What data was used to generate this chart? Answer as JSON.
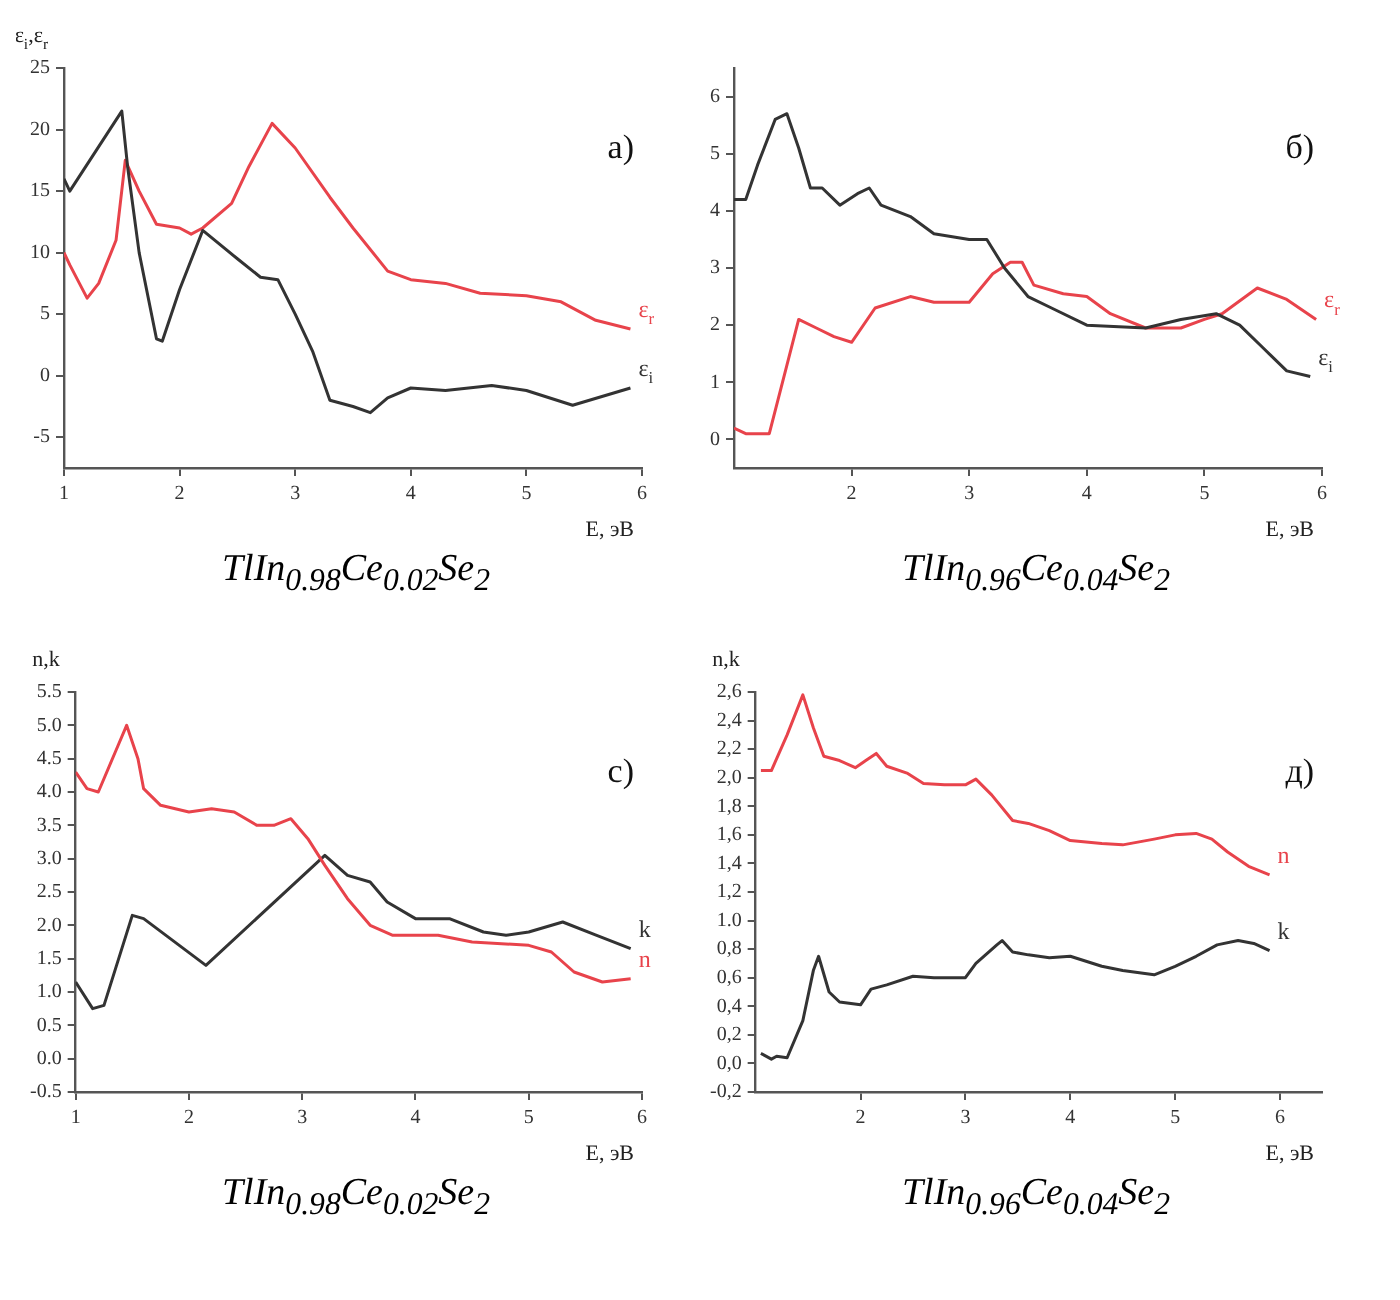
{
  "chart_data": [
    {
      "type": "line",
      "title": "a)",
      "xlabel": "E, эВ",
      "ylabel": "ε$_{i}$,ε$_{r}$",
      "annotations": [
        "TlIn$_{0.98}$Ce$_{0.02}$Se$_{2}$"
      ],
      "xlim": [
        1,
        6
      ],
      "xticks": [
        1,
        2,
        3,
        4,
        5,
        6
      ],
      "ylim": [
        -7.5,
        25
      ],
      "yticks": [
        -5,
        0,
        5,
        10,
        15,
        20,
        25
      ],
      "grid": false,
      "legend": false,
      "marker": "none",
      "series": [
        {
          "name": "ε$_{i}$",
          "color": "#333333",
          "x": [
            1,
            1.05,
            1.5,
            1.55,
            1.65,
            1.8,
            1.85,
            2.0,
            2.2,
            2.5,
            2.7,
            2.85,
            3.0,
            3.15,
            3.3,
            3.5,
            3.65,
            3.8,
            4.0,
            4.3,
            4.7,
            5.0,
            5.4,
            5.9
          ],
          "values": [
            16,
            15,
            21.5,
            17,
            10,
            3,
            2.8,
            7,
            11.8,
            9.5,
            8,
            7.8,
            5,
            2,
            -2,
            -2.5,
            -3,
            -1.8,
            -1,
            -1.2,
            -0.8,
            -1.2,
            -2.4,
            -1
          ]
        },
        {
          "name": "ε$_{r}$",
          "color": "#e8434b",
          "x": [
            1,
            1.05,
            1.2,
            1.3,
            1.45,
            1.53,
            1.65,
            1.8,
            2.0,
            2.1,
            2.2,
            2.45,
            2.6,
            2.8,
            3.0,
            3.3,
            3.5,
            3.8,
            4.0,
            4.3,
            4.6,
            5.0,
            5.3,
            5.6,
            5.9
          ],
          "values": [
            10,
            9,
            6.3,
            7.5,
            11,
            17.5,
            15,
            12.3,
            12,
            11.5,
            12,
            14,
            17,
            20.5,
            18.5,
            14.5,
            12,
            8.5,
            7.8,
            7.5,
            6.7,
            6.5,
            6,
            4.5,
            3.8
          ]
        }
      ]
    },
    {
      "type": "line",
      "title": "б)",
      "xlabel": "E, эВ",
      "annotations": [
        "TlIn$_{0.96}$Ce$_{0.04}$Se$_{2}$"
      ],
      "xlim": [
        1,
        6
      ],
      "xticks": [
        2,
        3,
        4,
        5,
        6
      ],
      "ylim": [
        -0.5,
        6.5
      ],
      "yticks": [
        0,
        1,
        2,
        3,
        4,
        5,
        6
      ],
      "grid": false,
      "legend": false,
      "marker": "none",
      "series": [
        {
          "name": "ε$_{i}$",
          "color": "#333333",
          "x": [
            1,
            1.1,
            1.2,
            1.35,
            1.45,
            1.55,
            1.65,
            1.75,
            1.9,
            2.05,
            2.15,
            2.25,
            2.5,
            2.7,
            3.0,
            3.15,
            3.3,
            3.5,
            3.7,
            4.0,
            4.5,
            4.8,
            5.1,
            5.3,
            5.5,
            5.7,
            5.9
          ],
          "values": [
            4.2,
            4.2,
            4.8,
            5.6,
            5.7,
            5.1,
            4.4,
            4.4,
            4.1,
            4.3,
            4.4,
            4.1,
            3.9,
            3.6,
            3.5,
            3.5,
            3.0,
            2.5,
            2.3,
            2.0,
            1.95,
            2.1,
            2.2,
            2.0,
            1.6,
            1.2,
            1.1
          ]
        },
        {
          "name": "ε$_{r}$",
          "color": "#e8434b",
          "x": [
            1,
            1.1,
            1.3,
            1.45,
            1.55,
            1.7,
            1.85,
            2.0,
            2.2,
            2.5,
            2.7,
            3.0,
            3.2,
            3.35,
            3.45,
            3.55,
            3.8,
            4.0,
            4.2,
            4.5,
            4.8,
            5.0,
            5.15,
            5.45,
            5.7,
            5.95
          ],
          "values": [
            0.2,
            0.1,
            0.1,
            1.3,
            2.1,
            1.95,
            1.8,
            1.7,
            2.3,
            2.5,
            2.4,
            2.4,
            2.9,
            3.1,
            3.1,
            2.7,
            2.55,
            2.5,
            2.2,
            1.95,
            1.95,
            2.1,
            2.2,
            2.65,
            2.45,
            2.1
          ]
        }
      ]
    },
    {
      "type": "line",
      "title": "c)",
      "xlabel": "E, эВ",
      "ylabel": "n,k",
      "annotations": [
        "TlIn$_{0.98}$Ce$_{0.02}$Se$_{2}$"
      ],
      "xlim": [
        1,
        6
      ],
      "xticks": [
        1,
        2,
        3,
        4,
        5,
        6
      ],
      "ylim": [
        -0.5,
        5.5
      ],
      "yticks": [
        -0.5,
        {
          "value": 0,
          "label": "0.0"
        },
        0.5,
        {
          "value": 1,
          "label": "1.0"
        },
        1.5,
        {
          "value": 2,
          "label": "2.0"
        },
        2.5,
        {
          "value": 3,
          "label": "3.0"
        },
        3.5,
        {
          "value": 4,
          "label": "4.0"
        },
        4.5,
        {
          "value": 5,
          "label": "5.0"
        },
        5.5
      ],
      "grid": false,
      "legend": false,
      "marker": "none",
      "series": [
        {
          "name": "n",
          "color": "#e8434b",
          "x": [
            1,
            1.1,
            1.2,
            1.35,
            1.45,
            1.55,
            1.6,
            1.75,
            2.0,
            2.2,
            2.4,
            2.6,
            2.75,
            2.9,
            3.05,
            3.2,
            3.4,
            3.6,
            3.8,
            4.0,
            4.2,
            4.5,
            5.0,
            5.2,
            5.4,
            5.65,
            5.9
          ],
          "values": [
            4.3,
            4.05,
            4.0,
            4.6,
            5.0,
            4.5,
            4.05,
            3.8,
            3.7,
            3.75,
            3.7,
            3.5,
            3.5,
            3.6,
            3.3,
            2.9,
            2.4,
            2.0,
            1.85,
            1.85,
            1.85,
            1.75,
            1.7,
            1.6,
            1.3,
            1.15,
            1.2
          ]
        },
        {
          "name": "k",
          "color": "#333333",
          "x": [
            1,
            1.15,
            1.25,
            1.5,
            1.6,
            2.15,
            3.2,
            3.4,
            3.6,
            3.75,
            4.0,
            4.3,
            4.6,
            4.8,
            5.0,
            5.3,
            5.6,
            5.9
          ],
          "values": [
            1.15,
            0.75,
            0.8,
            2.15,
            2.1,
            1.4,
            3.05,
            2.75,
            2.65,
            2.35,
            2.1,
            2.1,
            1.9,
            1.85,
            1.9,
            2.05,
            1.85,
            1.65
          ]
        }
      ]
    },
    {
      "type": "line",
      "title": "д)",
      "xlabel": "E, эВ",
      "ylabel": "n,k",
      "annotations": [
        "TlIn$_{0.96}$Ce$_{0.04}$Se$_{2}$"
      ],
      "xlim": [
        1,
        6.4
      ],
      "xticks": [
        2,
        3,
        4,
        5,
        6
      ],
      "ylim": [
        -0.2,
        2.6
      ],
      "yticks": [
        {
          "value": -0.2,
          "label": "-0,2"
        },
        {
          "value": 0,
          "label": "0,0"
        },
        {
          "value": 0.2,
          "label": "0,2"
        },
        {
          "value": 0.4,
          "label": "0,4"
        },
        {
          "value": 0.6,
          "label": "0,6"
        },
        {
          "value": 0.8,
          "label": "0,8"
        },
        {
          "value": 1,
          "label": "1.0"
        },
        {
          "value": 1.2,
          "label": "1,2"
        },
        {
          "value": 1.4,
          "label": "1,4"
        },
        {
          "value": 1.6,
          "label": "1,6"
        },
        {
          "value": 1.8,
          "label": "1,8"
        },
        {
          "value": 2,
          "label": "2,0"
        },
        {
          "value": 2.2,
          "label": "2,2"
        },
        {
          "value": 2.4,
          "label": "2,4"
        },
        {
          "value": 2.6,
          "label": "2,6"
        }
      ],
      "grid": false,
      "legend": false,
      "marker": "none",
      "series": [
        {
          "name": "n",
          "color": "#e8434b",
          "x": [
            1.05,
            1.15,
            1.3,
            1.45,
            1.55,
            1.65,
            1.8,
            1.95,
            2.05,
            2.15,
            2.25,
            2.45,
            2.6,
            2.8,
            3.0,
            3.1,
            3.25,
            3.45,
            3.6,
            3.8,
            4.0,
            4.3,
            4.5,
            4.8,
            5.0,
            5.2,
            5.35,
            5.5,
            5.7,
            5.9
          ],
          "values": [
            2.05,
            2.05,
            2.3,
            2.58,
            2.35,
            2.15,
            2.12,
            2.07,
            2.12,
            2.17,
            2.08,
            2.03,
            1.96,
            1.95,
            1.95,
            1.99,
            1.88,
            1.7,
            1.68,
            1.63,
            1.56,
            1.54,
            1.53,
            1.57,
            1.6,
            1.61,
            1.57,
            1.48,
            1.38,
            1.32
          ]
        },
        {
          "name": "k",
          "color": "#333333",
          "x": [
            1.05,
            1.15,
            1.2,
            1.3,
            1.45,
            1.55,
            1.6,
            1.7,
            1.8,
            2.0,
            2.1,
            2.25,
            2.5,
            2.7,
            3.0,
            3.1,
            3.3,
            3.35,
            3.45,
            3.6,
            3.8,
            4.0,
            4.3,
            4.5,
            4.8,
            5.0,
            5.2,
            5.4,
            5.6,
            5.75,
            5.9
          ],
          "values": [
            0.07,
            0.03,
            0.05,
            0.04,
            0.3,
            0.65,
            0.75,
            0.5,
            0.43,
            0.41,
            0.52,
            0.55,
            0.61,
            0.6,
            0.6,
            0.7,
            0.83,
            0.86,
            0.78,
            0.76,
            0.74,
            0.75,
            0.68,
            0.65,
            0.62,
            0.68,
            0.75,
            0.83,
            0.86,
            0.84,
            0.79
          ]
        }
      ]
    }
  ]
}
